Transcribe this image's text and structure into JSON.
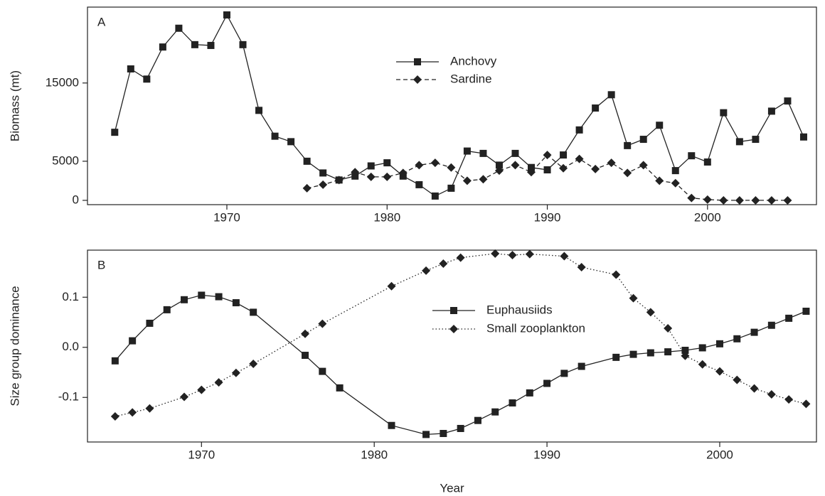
{
  "chart_data": [
    {
      "type": "line",
      "label": "A",
      "ylabel": "Biomass (mt)",
      "xlim": [
        1961.3,
        2006.8
      ],
      "xticks": [
        1970,
        1980,
        1990,
        2000
      ],
      "ylim": [
        -550,
        24700
      ],
      "yticks": [
        0,
        5000,
        15000
      ],
      "series": [
        {
          "name": "Anchovy",
          "color": "#222222",
          "marker": "square",
          "linestyle": "solid",
          "x": [
            1963,
            1964,
            1965,
            1966,
            1967,
            1968,
            1969,
            1970,
            1971,
            1972,
            1973,
            1974,
            1975,
            1976,
            1977,
            1978,
            1979,
            1980,
            1981,
            1982,
            1983,
            1984,
            1985,
            1986,
            1987,
            1988,
            1989,
            1990,
            1991,
            1992,
            1993,
            1994,
            1995,
            1996,
            1997,
            1998,
            1999,
            2000,
            2001,
            2002,
            2003,
            2004,
            2005,
            2006
          ],
          "values": [
            8700,
            16800,
            15500,
            19600,
            22000,
            19900,
            19800,
            23700,
            19900,
            11500,
            8200,
            7500,
            5000,
            3500,
            2600,
            3100,
            4400,
            4800,
            3100,
            2000,
            550,
            1550,
            6300,
            6000,
            4500,
            6000,
            4200,
            3900,
            5800,
            9000,
            11800,
            13500,
            7000,
            7800,
            9600,
            3800,
            5700,
            4900,
            11200,
            7500,
            7800,
            11400,
            12700,
            8100
          ]
        },
        {
          "name": "Sardine",
          "color": "#222222",
          "marker": "diamond",
          "linestyle": "dashed",
          "x": [
            1975,
            1976,
            1977,
            1978,
            1979,
            1980,
            1981,
            1982,
            1983,
            1984,
            1985,
            1986,
            1987,
            1988,
            1989,
            1990,
            1991,
            1992,
            1993,
            1994,
            1995,
            1996,
            1997,
            1998,
            1999,
            2000,
            2001,
            2002,
            2003,
            2004,
            2005
          ],
          "values": [
            1550,
            2000,
            2600,
            3600,
            3000,
            3000,
            3500,
            4500,
            4800,
            4200,
            2500,
            2700,
            3800,
            4500,
            3600,
            5800,
            4100,
            5300,
            4000,
            4800,
            3500,
            4500,
            2500,
            2200,
            300,
            100,
            0,
            0,
            0,
            0,
            0
          ]
        }
      ]
    },
    {
      "type": "line",
      "label": "B",
      "ylabel": "Size group dominance",
      "xlabel": "Year",
      "xlim": [
        1963.4,
        2005.6
      ],
      "xticks": [
        1970,
        1980,
        1990,
        2000
      ],
      "ylim": [
        -0.189,
        0.194
      ],
      "yticks": [
        {
          "value": -0.1,
          "label": "-0.1"
        },
        {
          "value": 0,
          "label": "0.0"
        },
        0.1
      ],
      "series": [
        {
          "name": "Euphausiids",
          "color": "#222222",
          "marker": "square",
          "linestyle": "solid",
          "x": [
            1965,
            1966,
            1967,
            1968,
            1969,
            1970,
            1971,
            1972,
            1973,
            1976,
            1977,
            1978,
            1981,
            1983,
            1984,
            1985,
            1986,
            1987,
            1988,
            1989,
            1990,
            1991,
            1992,
            1994,
            1995,
            1996,
            1997,
            1998,
            1999,
            2000,
            2001,
            2002,
            2003,
            2004,
            2005
          ],
          "values": [
            -0.027,
            0.013,
            0.048,
            0.075,
            0.095,
            0.104,
            0.101,
            0.089,
            0.07,
            -0.016,
            -0.048,
            -0.081,
            -0.156,
            -0.174,
            -0.172,
            -0.162,
            -0.146,
            -0.129,
            -0.111,
            -0.091,
            -0.072,
            -0.052,
            -0.038,
            -0.02,
            -0.014,
            -0.011,
            -0.009,
            -0.006,
            -0.001,
            0.007,
            0.017,
            0.03,
            0.044,
            0.058,
            0.072
          ]
        },
        {
          "name": "Small zooplankton",
          "color": "#222222",
          "marker": "diamond",
          "linestyle": "dotted",
          "x": [
            1965,
            1966,
            1967,
            1969,
            1970,
            1971,
            1972,
            1973,
            1976,
            1977,
            1981,
            1983,
            1984,
            1985,
            1987,
            1988,
            1989,
            1991,
            1992,
            1994,
            1995,
            1996,
            1997,
            1998,
            1999,
            2000,
            2001,
            2002,
            2003,
            2004,
            2005
          ],
          "values": [
            -0.138,
            -0.13,
            -0.122,
            -0.099,
            -0.085,
            -0.07,
            -0.051,
            -0.033,
            0.027,
            0.047,
            0.122,
            0.153,
            0.167,
            0.179,
            0.187,
            0.184,
            0.186,
            0.182,
            0.16,
            0.145,
            0.098,
            0.07,
            0.038,
            -0.017,
            -0.034,
            -0.048,
            -0.065,
            -0.082,
            -0.094,
            -0.104,
            -0.113
          ]
        }
      ]
    }
  ]
}
